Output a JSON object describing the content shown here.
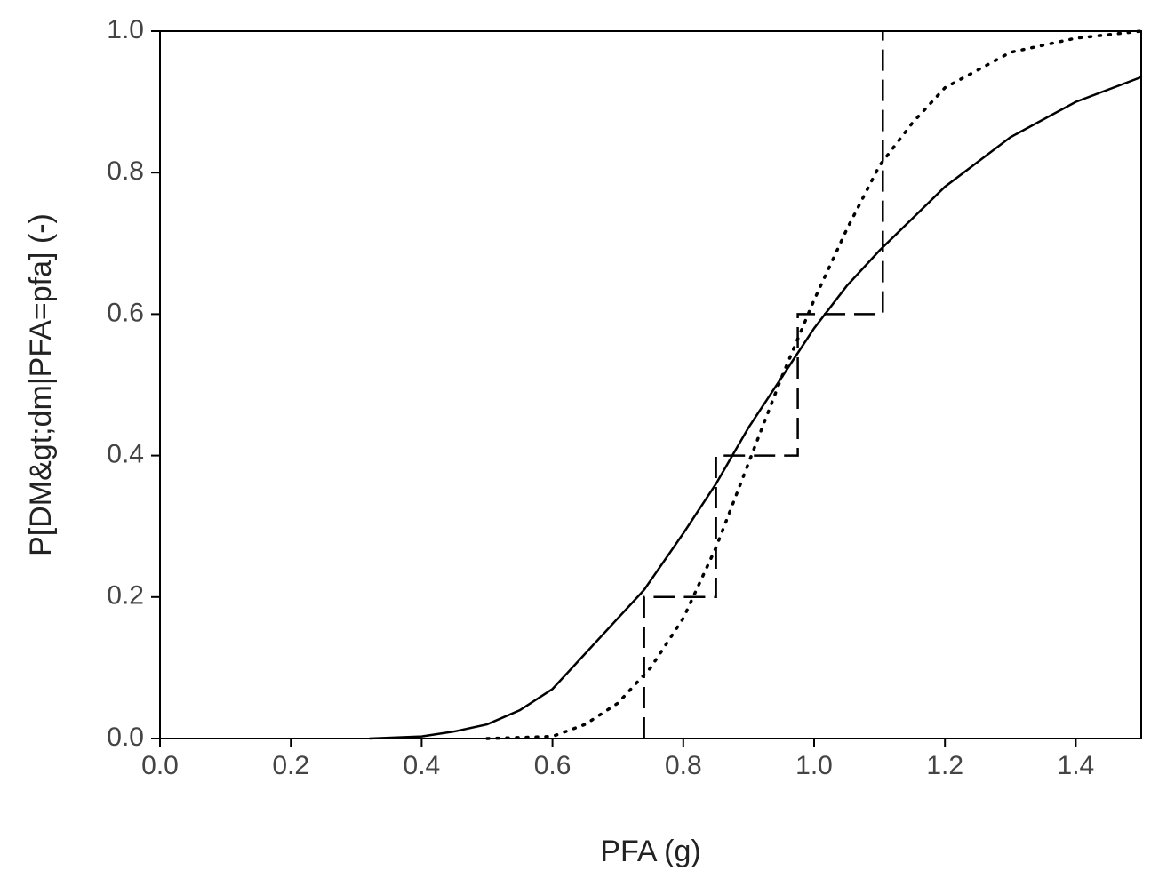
{
  "chart_data": {
    "type": "line",
    "xlabel": "PFA (g)",
    "ylabel": "P[DM&gt;dm|PFA=pfa] (-)",
    "xlim": [
      0,
      1.5
    ],
    "ylim": [
      0,
      1
    ],
    "xticks": [
      {
        "value": 0,
        "label": "0.0"
      },
      {
        "value": 0.2,
        "label": "0.2"
      },
      {
        "value": 0.4,
        "label": "0.4"
      },
      {
        "value": 0.6,
        "label": "0.6"
      },
      {
        "value": 0.8,
        "label": "0.8"
      },
      {
        "value": 1.0,
        "label": "1.0"
      },
      {
        "value": 1.2,
        "label": "1.2"
      },
      {
        "value": 1.4,
        "label": "1.4"
      }
    ],
    "yticks": [
      {
        "value": 0,
        "label": "0.0"
      },
      {
        "value": 0.2,
        "label": "0.2"
      },
      {
        "value": 0.4,
        "label": "0.4"
      },
      {
        "value": 0.6,
        "label": "0.6"
      },
      {
        "value": 0.8,
        "label": "0.8"
      },
      {
        "value": 1.0,
        "label": "1.0"
      }
    ],
    "series": [
      {
        "color": "#000000",
        "style": "solid",
        "x": [
          0.32,
          0.4,
          0.45,
          0.5,
          0.55,
          0.6,
          0.65,
          0.7,
          0.74,
          0.8,
          0.85,
          0.9,
          0.95,
          1.0,
          1.05,
          1.1,
          1.2,
          1.3,
          1.4,
          1.5
        ],
        "values": [
          0,
          0.003,
          0.01,
          0.02,
          0.04,
          0.07,
          0.12,
          0.17,
          0.21,
          0.29,
          0.36,
          0.44,
          0.51,
          0.58,
          0.64,
          0.69,
          0.78,
          0.85,
          0.9,
          0.935
        ]
      },
      {
        "color": "#000000",
        "style": "dotted",
        "x": [
          0.5,
          0.6,
          0.65,
          0.7,
          0.75,
          0.8,
          0.85,
          0.9,
          0.95,
          1.0,
          1.05,
          1.1,
          1.15,
          1.2,
          1.3,
          1.4,
          1.5
        ],
        "values": [
          0,
          0.003,
          0.02,
          0.05,
          0.1,
          0.17,
          0.27,
          0.39,
          0.51,
          0.62,
          0.72,
          0.81,
          0.87,
          0.92,
          0.97,
          0.99,
          1.0
        ]
      },
      {
        "color": "#000000",
        "style": "dashed",
        "x": [
          0.74,
          0.74,
          0.85,
          0.85,
          0.975,
          0.975,
          1.105,
          1.105
        ],
        "values": [
          0,
          0.2,
          0.2,
          0.4,
          0.4,
          0.6,
          0.6,
          1.0
        ]
      }
    ]
  }
}
